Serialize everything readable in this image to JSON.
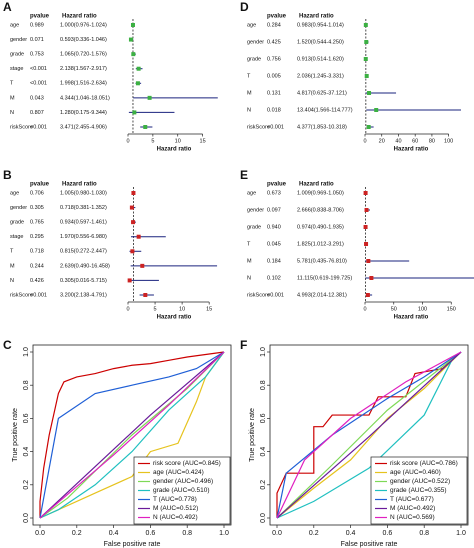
{
  "chart_data": [
    {
      "type": "forest",
      "panel": "A",
      "columns": [
        "pvalue",
        "Hazard ratio"
      ],
      "xlabel": "Hazard ratio",
      "color": "#3cb043",
      "ci_color": "#1a237e",
      "reference": 1,
      "xlim": [
        0,
        18.5
      ],
      "xticks": [
        0,
        5,
        10,
        15
      ],
      "rows": [
        {
          "name": "age",
          "pvalue": "0.989",
          "label": "1.000(0.976-1.024)",
          "hr": 1.0,
          "lower": 0.976,
          "upper": 1.024
        },
        {
          "name": "gender",
          "pvalue": "0.071",
          "label": "0.593(0.336-1.046)",
          "hr": 0.593,
          "lower": 0.336,
          "upper": 1.046
        },
        {
          "name": "grade",
          "pvalue": "0.753",
          "label": "1.065(0.720-1.576)",
          "hr": 1.065,
          "lower": 0.72,
          "upper": 1.576
        },
        {
          "name": "stage",
          "pvalue": "<0.001",
          "label": "2.138(1.567-2.917)",
          "hr": 2.138,
          "lower": 1.567,
          "upper": 2.917
        },
        {
          "name": "T",
          "pvalue": "<0.001",
          "label": "1.998(1.516-2.634)",
          "hr": 1.998,
          "lower": 1.516,
          "upper": 2.634
        },
        {
          "name": "M",
          "pvalue": "0.043",
          "label": "4.344(1.046-18.051)",
          "hr": 4.344,
          "lower": 1.046,
          "upper": 18.051
        },
        {
          "name": "N",
          "pvalue": "0.807",
          "label": "1.280(0.175-9.344)",
          "hr": 1.28,
          "lower": 0.175,
          "upper": 9.344
        },
        {
          "name": "riskScore",
          "pvalue": "<0.001",
          "label": "3.471(2.455-4.906)",
          "hr": 3.471,
          "lower": 2.455,
          "upper": 4.906
        }
      ]
    },
    {
      "type": "forest",
      "panel": "B",
      "columns": [
        "pvalue",
        "Hazard ratio"
      ],
      "xlabel": "Hazard ratio",
      "color": "#cc2222",
      "ci_color": "#1a237e",
      "reference": 1,
      "xlim": [
        0,
        17
      ],
      "xticks": [
        0,
        5,
        10,
        15
      ],
      "rows": [
        {
          "name": "age",
          "pvalue": "0.706",
          "label": "1.005(0.980-1.030)",
          "hr": 1.005,
          "lower": 0.98,
          "upper": 1.03
        },
        {
          "name": "gender",
          "pvalue": "0.305",
          "label": "0.718(0.381-1.352)",
          "hr": 0.718,
          "lower": 0.381,
          "upper": 1.352
        },
        {
          "name": "grade",
          "pvalue": "0.765",
          "label": "0.934(0.597-1.461)",
          "hr": 0.934,
          "lower": 0.597,
          "upper": 1.461
        },
        {
          "name": "stage",
          "pvalue": "0.295",
          "label": "1.970(0.556-6.980)",
          "hr": 1.97,
          "lower": 0.556,
          "upper": 6.98
        },
        {
          "name": "T",
          "pvalue": "0.718",
          "label": "0.815(0.272-2.447)",
          "hr": 0.815,
          "lower": 0.272,
          "upper": 2.447
        },
        {
          "name": "M",
          "pvalue": "0.244",
          "label": "2.639(0.490-16.458)",
          "hr": 2.639,
          "lower": 0.49,
          "upper": 16.458
        },
        {
          "name": "N",
          "pvalue": "0.426",
          "label": "0.305(0.016-5.715)",
          "hr": 0.305,
          "lower": 0.016,
          "upper": 5.715
        },
        {
          "name": "riskScore",
          "pvalue": "<0.001",
          "label": "3.200(2.138-4.791)",
          "hr": 3.2,
          "lower": 2.138,
          "upper": 4.791
        }
      ]
    },
    {
      "type": "roc",
      "panel": "C",
      "xlabel": "False positive rate",
      "ylabel": "True positive rate",
      "legend": "bottom-right",
      "xlim": [
        0,
        1
      ],
      "ylim": [
        0,
        1
      ],
      "xticks": [
        {
          "value": 0,
          "label": "0.0"
        },
        0.2,
        0.4,
        0.6,
        0.8,
        {
          "value": 1,
          "label": "1.0"
        }
      ],
      "yticks": [
        {
          "value": 0,
          "label": "0.0"
        },
        0.2,
        0.4,
        0.6,
        0.8,
        {
          "value": 1,
          "label": "1.0"
        }
      ],
      "series": [
        {
          "name": "risk score (AUC=0.845)",
          "color": "#cc0000",
          "x": [
            0,
            0,
            0.02,
            0.05,
            0.08,
            0.1,
            0.13,
            0.2,
            0.3,
            0.4,
            0.5,
            0.6,
            0.7,
            0.8,
            1
          ],
          "y": [
            0,
            0.1,
            0.3,
            0.5,
            0.65,
            0.75,
            0.82,
            0.85,
            0.87,
            0.9,
            0.92,
            0.93,
            0.95,
            0.97,
            1
          ]
        },
        {
          "name": "age (AUC=0.424)",
          "color": "#e6c31e",
          "x": [
            0,
            0.3,
            0.5,
            0.6,
            0.75,
            0.85,
            0.9,
            1
          ],
          "y": [
            0,
            0.15,
            0.25,
            0.4,
            0.45,
            0.7,
            0.85,
            1
          ]
        },
        {
          "name": "gender (AUC=0.496)",
          "color": "#7ed957",
          "x": [
            0,
            0.15,
            0.5,
            0.8,
            1
          ],
          "y": [
            0,
            0.12,
            0.5,
            0.78,
            1
          ]
        },
        {
          "name": "grade (AUC=0.510)",
          "color": "#20c0c0",
          "x": [
            0,
            0.1,
            0.3,
            0.5,
            0.7,
            0.9,
            1
          ],
          "y": [
            0,
            0.05,
            0.2,
            0.4,
            0.65,
            0.85,
            1
          ]
        },
        {
          "name": "T (AUC=0.778)",
          "color": "#1f5fd6",
          "x": [
            0,
            0.1,
            0.3,
            0.5,
            0.7,
            0.85,
            1
          ],
          "y": [
            0,
            0.6,
            0.75,
            0.8,
            0.85,
            0.9,
            1
          ]
        },
        {
          "name": "M (AUC=0.512)",
          "color": "#6a1b9a",
          "x": [
            0,
            0.3,
            0.6,
            1
          ],
          "y": [
            0,
            0.31,
            0.62,
            1
          ]
        },
        {
          "name": "N (AUC=0.492)",
          "color": "#e020c0",
          "x": [
            0,
            0.4,
            0.7,
            1
          ],
          "y": [
            0,
            0.38,
            0.68,
            1
          ]
        }
      ]
    },
    {
      "type": "forest",
      "panel": "D",
      "columns": [
        "pvalue",
        "Hazard ratio"
      ],
      "xlabel": "Hazard ratio",
      "color": "#3cb043",
      "ci_color": "#1a237e",
      "reference": 1,
      "xlim": [
        0,
        110
      ],
      "xticks": [
        0,
        20,
        40,
        60,
        80,
        100
      ],
      "rows": [
        {
          "name": "age",
          "pvalue": "0.284",
          "label": "0.983(0.954-1.014)",
          "hr": 0.983,
          "lower": 0.954,
          "upper": 1.014
        },
        {
          "name": "gender",
          "pvalue": "0.425",
          "label": "1.520(0.544-4.250)",
          "hr": 1.52,
          "lower": 0.544,
          "upper": 4.25
        },
        {
          "name": "grade",
          "pvalue": "0.756",
          "label": "0.913(0.514-1.620)",
          "hr": 0.913,
          "lower": 0.514,
          "upper": 1.62
        },
        {
          "name": "T",
          "pvalue": "0.005",
          "label": "2.036(1.245-3.331)",
          "hr": 2.036,
          "lower": 1.245,
          "upper": 3.331
        },
        {
          "name": "M",
          "pvalue": "0.131",
          "label": "4.817(0.625-37.121)",
          "hr": 4.817,
          "lower": 0.625,
          "upper": 37.121
        },
        {
          "name": "N",
          "pvalue": "0.018",
          "label": "13.404(1.566-114.777)",
          "hr": 13.404,
          "lower": 1.566,
          "upper": 114.777
        },
        {
          "name": "riskScore",
          "pvalue": "<0.001",
          "label": "4.377(1.853-10.318)",
          "hr": 4.377,
          "lower": 1.853,
          "upper": 10.318
        }
      ]
    },
    {
      "type": "forest",
      "panel": "E",
      "columns": [
        "pvalue",
        "Hazard ratio"
      ],
      "xlabel": "Hazard ratio",
      "color": "#cc2222",
      "ci_color": "#1a237e",
      "reference": 1,
      "xlim": [
        0,
        160
      ],
      "xticks": [
        0,
        50,
        100,
        150
      ],
      "rows": [
        {
          "name": "age",
          "pvalue": "0.673",
          "label": "1.009(0.969-1.050)",
          "hr": 1.009,
          "lower": 0.969,
          "upper": 1.05
        },
        {
          "name": "gender",
          "pvalue": "0.097",
          "label": "2.666(0.838-8.706)",
          "hr": 2.666,
          "lower": 0.838,
          "upper": 8.706
        },
        {
          "name": "grade",
          "pvalue": "0.940",
          "label": "0.974(0.490-1.935)",
          "hr": 0.974,
          "lower": 0.49,
          "upper": 1.935
        },
        {
          "name": "T",
          "pvalue": "0.045",
          "label": "1.825(1.012-3.291)",
          "hr": 1.825,
          "lower": 1.012,
          "upper": 3.291
        },
        {
          "name": "M",
          "pvalue": "0.184",
          "label": "5.781(0.435-76.810)",
          "hr": 5.781,
          "lower": 0.435,
          "upper": 76.81
        },
        {
          "name": "N",
          "pvalue": "0.102",
          "label": "11.115(0.619-199.725)",
          "hr": 11.115,
          "lower": 0.619,
          "upper": 199.725
        },
        {
          "name": "riskScore",
          "pvalue": "<0.001",
          "label": "4.993(2.014-12.381)",
          "hr": 4.993,
          "lower": 2.014,
          "upper": 12.381
        }
      ]
    },
    {
      "type": "roc",
      "panel": "F",
      "xlabel": "False positive rate",
      "ylabel": "True positive rate",
      "legend": "bottom-right",
      "xlim": [
        0,
        1
      ],
      "ylim": [
        0,
        1
      ],
      "xticks": [
        {
          "value": 0,
          "label": "0.0"
        },
        0.2,
        0.4,
        0.6,
        0.8,
        {
          "value": 1,
          "label": "1.0"
        }
      ],
      "yticks": [
        {
          "value": 0,
          "label": "0.0"
        },
        0.2,
        0.4,
        0.6,
        0.8,
        {
          "value": 1,
          "label": "1.0"
        }
      ],
      "series": [
        {
          "name": "risk score (AUC=0.786)",
          "color": "#cc0000",
          "x": [
            0,
            0,
            0.05,
            0.2,
            0.2,
            0.25,
            0.3,
            0.5,
            0.55,
            0.7,
            0.75,
            0.9,
            1
          ],
          "y": [
            0,
            0.15,
            0.27,
            0.27,
            0.55,
            0.55,
            0.62,
            0.62,
            0.73,
            0.73,
            0.87,
            0.9,
            1
          ]
        },
        {
          "name": "age (AUC=0.460)",
          "color": "#e6c31e",
          "x": [
            0,
            0.2,
            0.4,
            0.6,
            0.8,
            1
          ],
          "y": [
            0,
            0.18,
            0.35,
            0.6,
            0.78,
            1
          ]
        },
        {
          "name": "gender (AUC=0.522)",
          "color": "#7ed957",
          "x": [
            0,
            0.3,
            0.6,
            1
          ],
          "y": [
            0,
            0.32,
            0.65,
            1
          ]
        },
        {
          "name": "grade (AUC=0.355)",
          "color": "#20c0c0",
          "x": [
            0,
            0.2,
            0.5,
            0.8,
            0.95,
            1
          ],
          "y": [
            0,
            0.1,
            0.3,
            0.62,
            0.95,
            1
          ]
        },
        {
          "name": "T (AUC=0.677)",
          "color": "#1f5fd6",
          "x": [
            0,
            0.05,
            0.3,
            0.6,
            0.8,
            1
          ],
          "y": [
            0,
            0.27,
            0.5,
            0.72,
            0.85,
            1
          ]
        },
        {
          "name": "M (AUC=0.492)",
          "color": "#6a1b9a",
          "x": [
            0,
            0.5,
            1
          ],
          "y": [
            0,
            0.49,
            1
          ]
        },
        {
          "name": "N (AUC=0.569)",
          "color": "#e020c0",
          "x": [
            0,
            0.15,
            0.4,
            0.7,
            1
          ],
          "y": [
            0,
            0.35,
            0.6,
            0.82,
            1
          ]
        }
      ]
    }
  ]
}
